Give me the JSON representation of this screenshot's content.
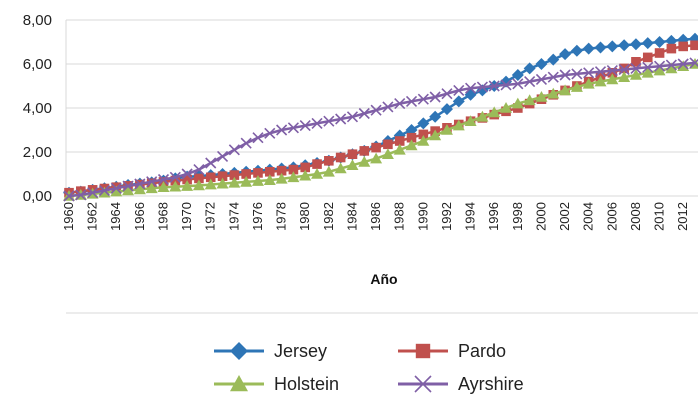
{
  "chart_data": {
    "type": "line",
    "title": "",
    "xlabel": "Año",
    "ylabel": "",
    "ylim": [
      0,
      8
    ],
    "y_ticks": [
      "0,00",
      "2,00",
      "4,00",
      "6,00",
      "8,00"
    ],
    "grid": "horizontal",
    "legend_position": "bottom",
    "x": [
      1960,
      1961,
      1962,
      1963,
      1964,
      1965,
      1966,
      1967,
      1968,
      1969,
      1970,
      1971,
      1972,
      1973,
      1974,
      1975,
      1976,
      1977,
      1978,
      1979,
      1980,
      1981,
      1982,
      1983,
      1984,
      1985,
      1986,
      1987,
      1988,
      1989,
      1990,
      1991,
      1992,
      1993,
      1994,
      1995,
      1996,
      1997,
      1998,
      1999,
      2000,
      2001,
      2002,
      2003,
      2004,
      2005,
      2006,
      2007,
      2008,
      2009,
      2010,
      2011,
      2012,
      2013
    ],
    "x_tick_labels": [
      "1960",
      "1962",
      "1964",
      "1966",
      "1968",
      "1970",
      "1972",
      "1974",
      "1976",
      "1978",
      "1980",
      "1982",
      "1984",
      "1986",
      "1988",
      "1990",
      "1992",
      "1994",
      "1996",
      "1998",
      "2000",
      "2002",
      "2004",
      "2006",
      "2008",
      "2010",
      "2012"
    ],
    "series": [
      {
        "name": "Jersey",
        "color": "#2E75B6",
        "marker": "diamond",
        "values": [
          0.15,
          0.2,
          0.28,
          0.35,
          0.42,
          0.5,
          0.56,
          0.62,
          0.7,
          0.8,
          0.88,
          0.9,
          0.95,
          1.0,
          1.05,
          1.1,
          1.15,
          1.2,
          1.25,
          1.3,
          1.4,
          1.5,
          1.6,
          1.75,
          1.9,
          2.05,
          2.25,
          2.5,
          2.75,
          3.0,
          3.3,
          3.6,
          3.95,
          4.3,
          4.6,
          4.8,
          5.0,
          5.2,
          5.5,
          5.8,
          6.0,
          6.2,
          6.45,
          6.6,
          6.7,
          6.75,
          6.8,
          6.85,
          6.9,
          6.95,
          7.0,
          7.05,
          7.1,
          7.15
        ]
      },
      {
        "name": "Pardo",
        "color": "#C0504D",
        "marker": "square",
        "values": [
          0.15,
          0.22,
          0.28,
          0.34,
          0.4,
          0.46,
          0.52,
          0.58,
          0.64,
          0.7,
          0.75,
          0.8,
          0.85,
          0.9,
          0.95,
          1.0,
          1.05,
          1.1,
          1.15,
          1.2,
          1.3,
          1.45,
          1.6,
          1.75,
          1.9,
          2.05,
          2.2,
          2.35,
          2.5,
          2.65,
          2.8,
          2.95,
          3.1,
          3.25,
          3.4,
          3.55,
          3.7,
          3.85,
          4.0,
          4.2,
          4.4,
          4.6,
          4.8,
          5.0,
          5.2,
          5.4,
          5.6,
          5.8,
          6.1,
          6.3,
          6.5,
          6.7,
          6.8,
          6.85
        ]
      },
      {
        "name": "Holstein",
        "color": "#9BBB59",
        "marker": "triangle",
        "values": [
          0.0,
          0.05,
          0.1,
          0.15,
          0.2,
          0.25,
          0.3,
          0.35,
          0.4,
          0.42,
          0.45,
          0.48,
          0.52,
          0.56,
          0.6,
          0.64,
          0.68,
          0.72,
          0.78,
          0.85,
          0.92,
          1.0,
          1.1,
          1.25,
          1.4,
          1.55,
          1.7,
          1.9,
          2.1,
          2.3,
          2.5,
          2.75,
          3.0,
          3.2,
          3.4,
          3.6,
          3.8,
          4.0,
          4.2,
          4.35,
          4.5,
          4.65,
          4.8,
          4.95,
          5.1,
          5.2,
          5.3,
          5.4,
          5.5,
          5.6,
          5.7,
          5.8,
          5.9,
          6.0
        ]
      },
      {
        "name": "Ayrshire",
        "color": "#7F5FA6",
        "marker": "x",
        "values": [
          0.0,
          0.05,
          0.15,
          0.25,
          0.35,
          0.45,
          0.55,
          0.65,
          0.75,
          0.85,
          1.0,
          1.2,
          1.5,
          1.8,
          2.1,
          2.4,
          2.65,
          2.85,
          3.0,
          3.1,
          3.2,
          3.3,
          3.4,
          3.5,
          3.6,
          3.75,
          3.9,
          4.05,
          4.2,
          4.3,
          4.4,
          4.5,
          4.65,
          4.8,
          4.9,
          4.95,
          5.0,
          5.05,
          5.1,
          5.2,
          5.3,
          5.4,
          5.5,
          5.55,
          5.6,
          5.65,
          5.7,
          5.75,
          5.8,
          5.85,
          5.9,
          5.95,
          6.0,
          6.05
        ]
      }
    ]
  }
}
